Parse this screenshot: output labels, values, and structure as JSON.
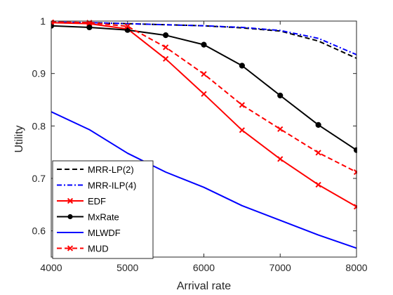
{
  "chart_data": {
    "type": "line",
    "title": "",
    "xlabel": "Arrival rate",
    "ylabel": "Utility",
    "xlim": [
      4000,
      8000
    ],
    "ylim": [
      0.55,
      1.0
    ],
    "grid": false,
    "legend_position": "bottom-left",
    "x_ticks": [
      4000,
      5000,
      6000,
      7000,
      8000
    ],
    "y_ticks": [
      0.6,
      0.7,
      0.8,
      0.9,
      1
    ],
    "x_tick_labels": [
      "4000",
      "5000",
      "6000",
      "7000",
      "8000"
    ],
    "y_tick_labels": [
      "0.6",
      "0.7",
      "0.8",
      "0.9",
      "1"
    ],
    "series": [
      {
        "name": "MRR-LP(2)",
        "color": "#000000",
        "dash": "dashed",
        "marker": "none",
        "x": [
          4000,
          4500,
          5000,
          5500,
          6000,
          6500,
          7000,
          7500,
          8000
        ],
        "y": [
          0.998,
          0.997,
          0.995,
          0.993,
          0.991,
          0.987,
          0.981,
          0.962,
          0.929
        ]
      },
      {
        "name": "MRR-ILP(4)",
        "color": "#0000ff",
        "dash": "dashdot",
        "marker": "none",
        "x": [
          4000,
          4500,
          5000,
          5500,
          6000,
          6500,
          7000,
          7500,
          8000
        ],
        "y": [
          0.998,
          0.997,
          0.995,
          0.993,
          0.991,
          0.988,
          0.982,
          0.967,
          0.936
        ]
      },
      {
        "name": "EDF",
        "color": "#ff0000",
        "dash": "solid",
        "marker": "x",
        "x": [
          4000,
          4500,
          5000,
          5500,
          6000,
          6500,
          7000,
          7500,
          8000
        ],
        "y": [
          0.997,
          0.995,
          0.985,
          0.928,
          0.861,
          0.792,
          0.737,
          0.688,
          0.646
        ]
      },
      {
        "name": "MxRate",
        "color": "#000000",
        "dash": "solid",
        "marker": "circle",
        "x": [
          4000,
          4500,
          5000,
          5500,
          6000,
          6500,
          7000,
          7500,
          8000
        ],
        "y": [
          0.991,
          0.988,
          0.983,
          0.973,
          0.955,
          0.915,
          0.858,
          0.802,
          0.754
        ]
      },
      {
        "name": "MLWDF",
        "color": "#0000ff",
        "dash": "solid",
        "marker": "none",
        "x": [
          4000,
          4500,
          5000,
          5500,
          6000,
          6500,
          7000,
          7500,
          8000
        ],
        "y": [
          0.827,
          0.793,
          0.748,
          0.712,
          0.683,
          0.648,
          0.62,
          0.592,
          0.567
        ]
      },
      {
        "name": "MUD",
        "color": "#ff0000",
        "dash": "dashed",
        "marker": "x",
        "x": [
          4000,
          4500,
          5000,
          5500,
          6000,
          6500,
          7000,
          7500,
          8000
        ],
        "y": [
          0.998,
          0.997,
          0.99,
          0.95,
          0.899,
          0.84,
          0.794,
          0.749,
          0.712
        ]
      }
    ]
  }
}
